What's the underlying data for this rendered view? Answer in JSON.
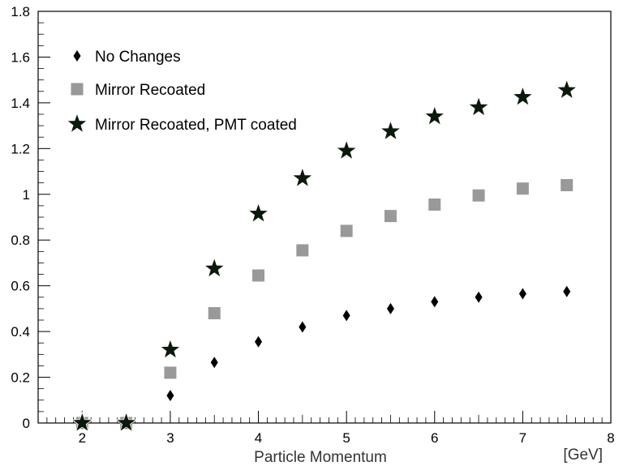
{
  "chart_data": {
    "type": "scatter",
    "title": "",
    "xlabel": "Particle Momentum",
    "x_unit_label": "[GeV]",
    "ylabel": "",
    "xlim": [
      1.5,
      8
    ],
    "ylim": [
      0,
      1.8
    ],
    "x_ticks": [
      2,
      3,
      4,
      5,
      6,
      7,
      8
    ],
    "y_ticks": [
      0,
      0.2,
      0.4,
      0.6,
      0.8,
      1,
      1.2,
      1.4,
      1.6,
      1.8
    ],
    "x_tick_labels": [
      "2",
      "3",
      "4",
      "5",
      "6",
      "7",
      "8"
    ],
    "y_tick_labels": [
      "0",
      "0.2",
      "0.4",
      "0.6",
      "0.8",
      "1",
      "1.2",
      "1.4",
      "1.6",
      "1.8"
    ],
    "grid": false,
    "legend_position": "top-left",
    "series": [
      {
        "name": "No Changes",
        "marker": "diamond",
        "color": "#000000",
        "x": [
          2,
          2.5,
          3,
          3.5,
          4,
          4.5,
          5,
          5.5,
          6,
          6.5,
          7,
          7.5
        ],
        "y": [
          0,
          0,
          0.12,
          0.265,
          0.355,
          0.42,
          0.47,
          0.5,
          0.53,
          0.55,
          0.565,
          0.575
        ]
      },
      {
        "name": "Mirror Recoated",
        "marker": "square",
        "color": "#999999",
        "x": [
          2,
          2.5,
          3,
          3.5,
          4,
          4.5,
          5,
          5.5,
          6,
          6.5,
          7,
          7.5
        ],
        "y": [
          0,
          0,
          0.22,
          0.48,
          0.645,
          0.755,
          0.84,
          0.905,
          0.955,
          0.995,
          1.025,
          1.04
        ]
      },
      {
        "name": "Mirror Recoated, PMT coated",
        "marker": "star",
        "color": "#000000",
        "x": [
          2,
          2.5,
          3,
          3.5,
          4,
          4.5,
          5,
          5.5,
          6,
          6.5,
          7,
          7.5
        ],
        "y": [
          0,
          0,
          0.32,
          0.675,
          0.915,
          1.07,
          1.19,
          1.275,
          1.34,
          1.38,
          1.425,
          1.455
        ]
      }
    ]
  }
}
